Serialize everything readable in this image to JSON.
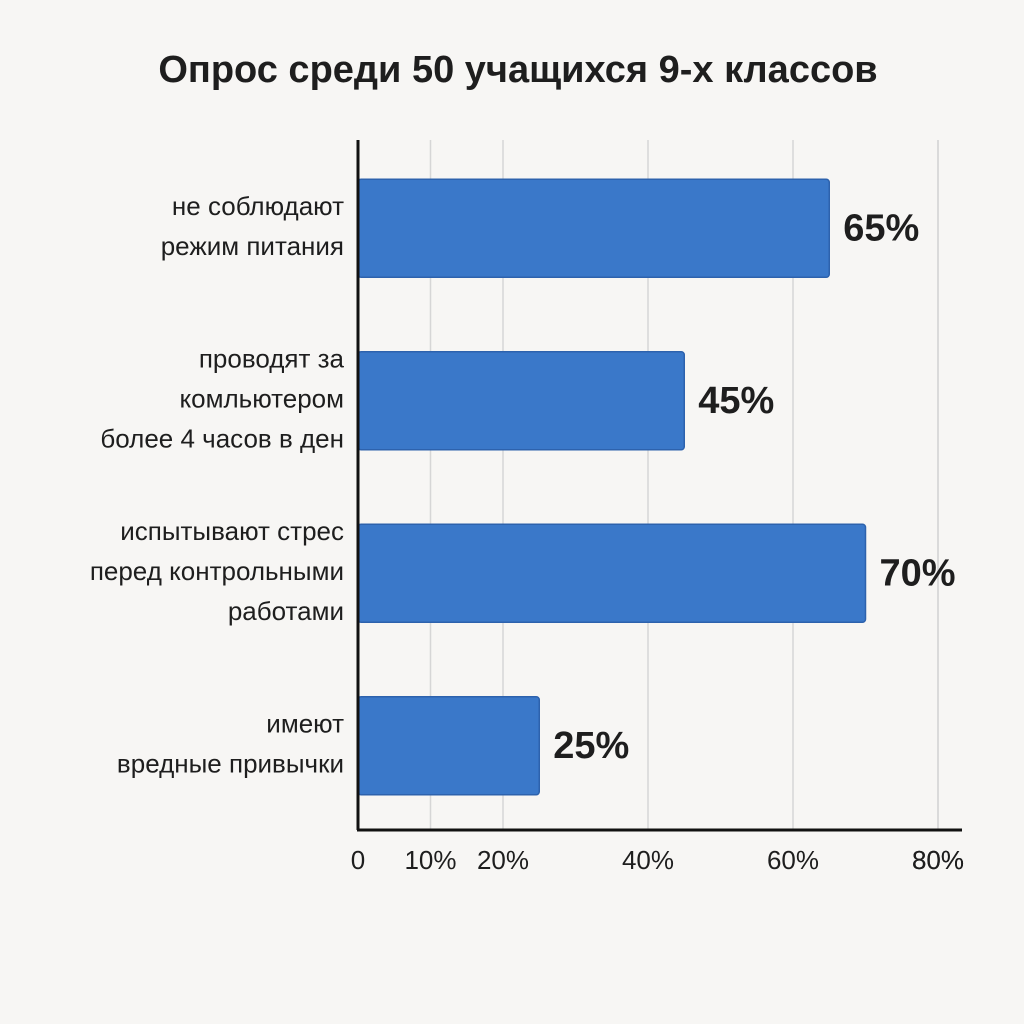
{
  "chart_data": {
    "type": "hbar",
    "title": "Опрос среди 50 учащихся 9-х классов",
    "categories": [
      [
        "не соблюдают",
        "режим питания"
      ],
      [
        "проводят за",
        "комльютером",
        "более 4 часов в ден"
      ],
      [
        "испытывают стрес",
        "перед контрольными",
        "работами"
      ],
      [
        "имеют",
        "вредные привычки"
      ]
    ],
    "values": [
      65,
      45,
      70,
      25
    ],
    "value_labels": [
      "65%",
      "45%",
      "70%",
      "25%"
    ],
    "color": "#3a78c9",
    "xlim": [
      0,
      80
    ],
    "xticks": [
      0,
      {
        "value": 10,
        "label": "10%"
      },
      {
        "value": 20,
        "label": "20%"
      },
      {
        "value": 40,
        "label": "40%"
      },
      {
        "value": 60,
        "label": "60%"
      },
      {
        "value": 80,
        "label": "80%"
      },
      {
        "value": 80,
        "label": "80%"
      }
    ],
    "grid": true
  }
}
